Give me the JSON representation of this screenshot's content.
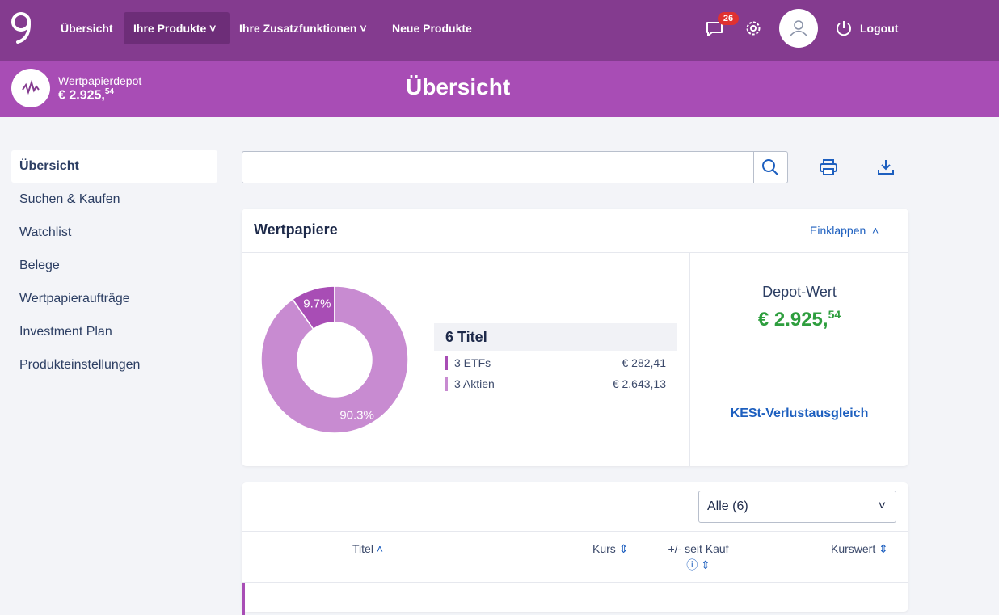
{
  "nav": {
    "items": [
      "Übersicht",
      "Ihre Produkte",
      "Ihre Zusatzfunktionen",
      "Neue Produkte"
    ],
    "badge": "26",
    "logout": "Logout"
  },
  "header": {
    "account": "Wertpapierdepot",
    "balance": "€ 2.925,",
    "balance_cents": "54",
    "title": "Übersicht"
  },
  "sidebar": {
    "items": [
      "Übersicht",
      "Suchen & Kaufen",
      "Watchlist",
      "Belege",
      "Wertpapieraufträge",
      "Investment Plan",
      "Produkteinstellungen"
    ]
  },
  "securities": {
    "title": "Wertpapiere",
    "collapse": "Einklappen",
    "chart": {
      "type": "pie",
      "values": [
        9.7,
        90.3
      ],
      "value_labels": [
        "9.7%",
        "90.3%"
      ],
      "colors": [
        "#a84db5",
        "#c88bd1"
      ]
    },
    "summary": {
      "title": "6 Titel",
      "rows": [
        {
          "label": "3 ETFs",
          "value": "€ 282,41"
        },
        {
          "label": "3 Aktien",
          "value": "€ 2.643,13"
        }
      ]
    },
    "depot": {
      "label": "Depot-Wert",
      "value": "€ 2.925,",
      "cents": "54"
    },
    "kest": "KESt-Verlustausgleich"
  },
  "table": {
    "filter": "Alle (6)",
    "columns": [
      "Titel",
      "Kurs",
      "+/- seit Kauf",
      "Kurswert"
    ]
  }
}
